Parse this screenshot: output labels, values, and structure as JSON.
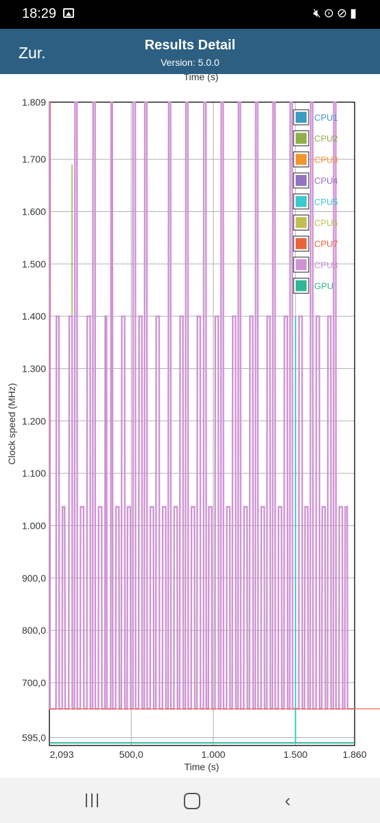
{
  "status_bar": {
    "time": "18:29"
  },
  "header": {
    "back_label": "Zur.",
    "title": "Results Detail",
    "version": "Version: 5.0.0"
  },
  "chart_data": {
    "type": "line",
    "top_axis_label": "Time (s)",
    "xlabel": "Time (s)",
    "ylabel": "Clock speed (MHz)",
    "ylim": [
      580,
      1809
    ],
    "xlim": [
      2.093,
      1860
    ],
    "y_ticks": [
      "1.809",
      "1.700",
      "1.600",
      "1.500",
      "1.400",
      "1.300",
      "1.200",
      "1.100",
      "1.000",
      "900,0",
      "800,0",
      "700,0",
      "595,0"
    ],
    "y_tick_values": [
      1809,
      1700,
      1600,
      1500,
      1400,
      1300,
      1200,
      1100,
      1000,
      900,
      800,
      700,
      595
    ],
    "x_ticks": [
      "2,093",
      "500,0",
      "1.000",
      "1.500",
      "1.860"
    ],
    "x_tick_values": [
      2.093,
      500,
      1000,
      1500,
      1860
    ],
    "grid": true,
    "legend_position": "top-right",
    "series": [
      {
        "name": "CPU1",
        "color": "#3f9cc1"
      },
      {
        "name": "CPU2",
        "color": "#8fb04a"
      },
      {
        "name": "CPU3",
        "color": "#f0962e"
      },
      {
        "name": "CPU4",
        "color": "#9473c0"
      },
      {
        "name": "CPU5",
        "color": "#3cc9cf"
      },
      {
        "name": "CPU6",
        "color": "#c1bf52"
      },
      {
        "name": "CPU7",
        "color": "#e9643c"
      },
      {
        "name": "CPU8",
        "color": "#cf93d4"
      },
      {
        "name": "GPU",
        "color": "#2fb798"
      }
    ],
    "cpu_levels_mhz": [
      650,
      1036,
      1400,
      1805
    ],
    "gpu_value_mhz": 585,
    "gpu_spike": {
      "time_s": 1500,
      "value_mhz": 1400
    },
    "cpu2_spikes": [
      {
        "time_s": 140,
        "value_mhz": 1690
      },
      {
        "time_s": 1745,
        "value_mhz": 1809
      }
    ],
    "cpu8_trace": [
      [
        2.093,
        1809
      ],
      [
        5,
        650
      ],
      [
        42,
        650
      ],
      [
        45,
        1400
      ],
      [
        60,
        1400
      ],
      [
        62,
        650
      ],
      [
        80,
        650
      ],
      [
        82,
        1036
      ],
      [
        95,
        1036
      ],
      [
        98,
        650
      ],
      [
        120,
        650
      ],
      [
        123,
        1400
      ],
      [
        140,
        1400
      ],
      [
        142,
        650
      ],
      [
        155,
        650
      ],
      [
        158,
        1809
      ],
      [
        170,
        1809
      ],
      [
        172,
        650
      ],
      [
        190,
        650
      ],
      [
        192,
        1036
      ],
      [
        210,
        1036
      ],
      [
        212,
        650
      ],
      [
        230,
        650
      ],
      [
        232,
        1400
      ],
      [
        250,
        1400
      ],
      [
        252,
        650
      ],
      [
        265,
        650
      ],
      [
        268,
        1809
      ],
      [
        280,
        1809
      ],
      [
        282,
        650
      ],
      [
        300,
        650
      ],
      [
        302,
        1036
      ],
      [
        320,
        1036
      ],
      [
        322,
        650
      ],
      [
        340,
        650
      ],
      [
        342,
        1400
      ],
      [
        350,
        1400
      ],
      [
        352,
        650
      ],
      [
        375,
        650
      ],
      [
        378,
        1809
      ],
      [
        385,
        1809
      ],
      [
        388,
        650
      ],
      [
        405,
        650
      ],
      [
        408,
        1036
      ],
      [
        425,
        1036
      ],
      [
        428,
        650
      ],
      [
        440,
        650
      ],
      [
        443,
        1400
      ],
      [
        460,
        1400
      ],
      [
        462,
        650
      ],
      [
        475,
        650
      ],
      [
        478,
        1036
      ],
      [
        495,
        1036
      ],
      [
        497,
        650
      ],
      [
        510,
        650
      ],
      [
        512,
        1809
      ],
      [
        525,
        1809
      ],
      [
        527,
        650
      ],
      [
        545,
        650
      ],
      [
        548,
        1400
      ],
      [
        565,
        1400
      ],
      [
        567,
        650
      ],
      [
        580,
        650
      ],
      [
        583,
        1809
      ],
      [
        595,
        1809
      ],
      [
        597,
        650
      ],
      [
        615,
        650
      ],
      [
        617,
        1036
      ],
      [
        635,
        1036
      ],
      [
        637,
        650
      ],
      [
        650,
        650
      ],
      [
        652,
        1400
      ],
      [
        670,
        1400
      ],
      [
        672,
        650
      ],
      [
        690,
        650
      ],
      [
        692,
        1036
      ],
      [
        710,
        1036
      ],
      [
        712,
        650
      ],
      [
        725,
        650
      ],
      [
        728,
        1809
      ],
      [
        740,
        1809
      ],
      [
        742,
        650
      ],
      [
        760,
        650
      ],
      [
        762,
        1036
      ],
      [
        780,
        1036
      ],
      [
        782,
        650
      ],
      [
        795,
        650
      ],
      [
        798,
        1400
      ],
      [
        815,
        1400
      ],
      [
        817,
        650
      ],
      [
        830,
        650
      ],
      [
        833,
        1809
      ],
      [
        845,
        1809
      ],
      [
        847,
        650
      ],
      [
        865,
        650
      ],
      [
        867,
        1036
      ],
      [
        885,
        1036
      ],
      [
        887,
        650
      ],
      [
        900,
        650
      ],
      [
        903,
        1400
      ],
      [
        920,
        1400
      ],
      [
        922,
        650
      ],
      [
        940,
        650
      ],
      [
        942,
        1809
      ],
      [
        955,
        1809
      ],
      [
        957,
        650
      ],
      [
        970,
        650
      ],
      [
        973,
        1036
      ],
      [
        990,
        1036
      ],
      [
        992,
        650
      ],
      [
        1010,
        650
      ],
      [
        1012,
        1400
      ],
      [
        1030,
        1400
      ],
      [
        1032,
        650
      ],
      [
        1045,
        650
      ],
      [
        1048,
        1809
      ],
      [
        1060,
        1809
      ],
      [
        1062,
        650
      ],
      [
        1080,
        650
      ],
      [
        1082,
        1036
      ],
      [
        1100,
        1036
      ],
      [
        1102,
        650
      ],
      [
        1115,
        650
      ],
      [
        1118,
        1400
      ],
      [
        1135,
        1400
      ],
      [
        1137,
        650
      ],
      [
        1150,
        650
      ],
      [
        1153,
        1809
      ],
      [
        1165,
        1809
      ],
      [
        1167,
        650
      ],
      [
        1185,
        650
      ],
      [
        1187,
        1036
      ],
      [
        1205,
        1036
      ],
      [
        1207,
        650
      ],
      [
        1220,
        650
      ],
      [
        1223,
        1400
      ],
      [
        1240,
        1400
      ],
      [
        1242,
        650
      ],
      [
        1255,
        650
      ],
      [
        1258,
        1809
      ],
      [
        1270,
        1809
      ],
      [
        1272,
        650
      ],
      [
        1290,
        650
      ],
      [
        1292,
        1036
      ],
      [
        1310,
        1036
      ],
      [
        1312,
        650
      ],
      [
        1325,
        650
      ],
      [
        1328,
        1400
      ],
      [
        1345,
        1400
      ],
      [
        1347,
        650
      ],
      [
        1360,
        650
      ],
      [
        1363,
        1809
      ],
      [
        1375,
        1809
      ],
      [
        1377,
        650
      ],
      [
        1395,
        650
      ],
      [
        1397,
        1036
      ],
      [
        1415,
        1036
      ],
      [
        1417,
        650
      ],
      [
        1430,
        650
      ],
      [
        1433,
        1400
      ],
      [
        1450,
        1400
      ],
      [
        1452,
        650
      ],
      [
        1465,
        650
      ],
      [
        1468,
        1809
      ],
      [
        1480,
        1809
      ],
      [
        1482,
        650
      ],
      [
        1500,
        650
      ],
      [
        1520,
        650
      ],
      [
        1522,
        1400
      ],
      [
        1540,
        1400
      ],
      [
        1542,
        650
      ],
      [
        1555,
        650
      ],
      [
        1558,
        1036
      ],
      [
        1575,
        1036
      ],
      [
        1577,
        650
      ],
      [
        1590,
        650
      ],
      [
        1593,
        1809
      ],
      [
        1605,
        1809
      ],
      [
        1607,
        650
      ],
      [
        1625,
        650
      ],
      [
        1627,
        1400
      ],
      [
        1645,
        1400
      ],
      [
        1647,
        650
      ],
      [
        1660,
        650
      ],
      [
        1663,
        1036
      ],
      [
        1680,
        1036
      ],
      [
        1682,
        650
      ],
      [
        1695,
        650
      ],
      [
        1698,
        1400
      ],
      [
        1715,
        1400
      ],
      [
        1717,
        650
      ],
      [
        1730,
        650
      ],
      [
        1733,
        1809
      ],
      [
        1745,
        1809
      ],
      [
        1747,
        650
      ],
      [
        1765,
        650
      ],
      [
        1767,
        1036
      ],
      [
        1785,
        1036
      ],
      [
        1787,
        650
      ],
      [
        1800,
        650
      ],
      [
        1803,
        1036
      ],
      [
        1815,
        1036
      ],
      [
        1817,
        650
      ],
      [
        1860,
        650
      ]
    ]
  }
}
